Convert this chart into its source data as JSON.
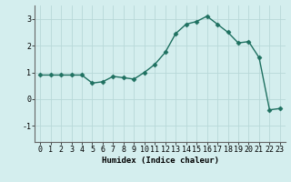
{
  "x": [
    0,
    1,
    2,
    3,
    4,
    5,
    6,
    7,
    8,
    9,
    10,
    11,
    12,
    13,
    14,
    15,
    16,
    17,
    18,
    19,
    20,
    21,
    22,
    23
  ],
  "y": [
    0.9,
    0.9,
    0.9,
    0.9,
    0.9,
    0.6,
    0.65,
    0.85,
    0.8,
    0.75,
    1.0,
    1.3,
    1.75,
    2.45,
    2.8,
    2.9,
    3.1,
    2.8,
    2.5,
    2.1,
    2.15,
    1.55,
    -0.4,
    -0.35
  ],
  "xlabel": "Humidex (Indice chaleur)",
  "xlim": [
    -0.5,
    23.5
  ],
  "ylim": [
    -1.6,
    3.5
  ],
  "yticks": [
    -1,
    0,
    1,
    2,
    3
  ],
  "xticks": [
    0,
    1,
    2,
    3,
    4,
    5,
    6,
    7,
    8,
    9,
    10,
    11,
    12,
    13,
    14,
    15,
    16,
    17,
    18,
    19,
    20,
    21,
    22,
    23
  ],
  "line_color": "#1e7060",
  "marker": "D",
  "marker_size": 2.5,
  "bg_color": "#d4eeee",
  "grid_color": "#b8d8d8",
  "label_fontsize": 6.5,
  "tick_fontsize": 6,
  "line_width": 1.0
}
